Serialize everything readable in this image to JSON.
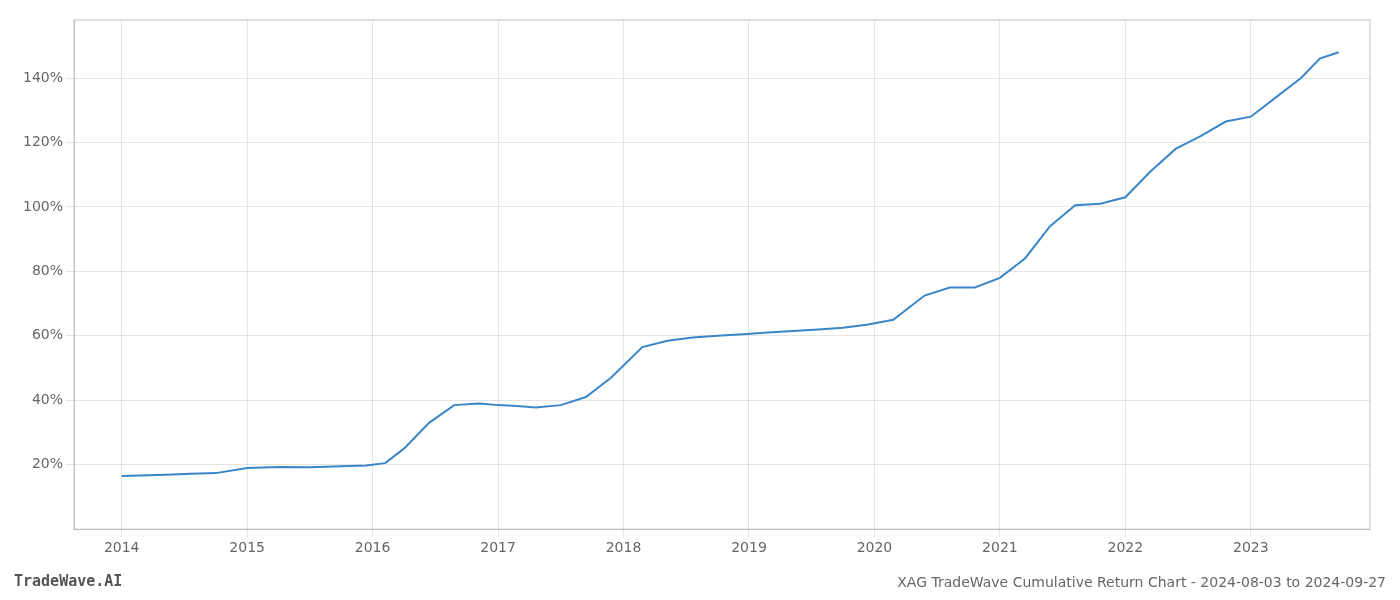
{
  "chart_data": {
    "type": "line",
    "title": "XAG TradeWave Cumulative Return Chart - 2024-08-03 to 2024-09-27",
    "annotations": [
      "TradeWave.AI"
    ],
    "x": [
      2014.0,
      2014.15,
      2014.35,
      2014.55,
      2014.75,
      2015.0,
      2015.25,
      2015.5,
      2015.75,
      2015.95,
      2016.1,
      2016.25,
      2016.45,
      2016.65,
      2016.85,
      2017.0,
      2017.15,
      2017.3,
      2017.5,
      2017.7,
      2017.9,
      2018.15,
      2018.35,
      2018.55,
      2018.75,
      2018.95,
      2019.15,
      2019.35,
      2019.55,
      2019.75,
      2019.95,
      2020.15,
      2020.4,
      2020.6,
      2020.8,
      2021.0,
      2021.2,
      2021.4,
      2021.6,
      2021.8,
      2022.0,
      2022.2,
      2022.4,
      2022.6,
      2022.8,
      2023.0,
      2023.2,
      2023.4,
      2023.55,
      2023.7
    ],
    "values": [
      16.5,
      16.7,
      16.9,
      17.2,
      17.4,
      19.0,
      19.3,
      19.2,
      19.5,
      19.8,
      20.5,
      25.0,
      33.0,
      38.5,
      39.0,
      38.5,
      38.2,
      37.8,
      38.5,
      41.0,
      47.0,
      56.5,
      58.5,
      59.5,
      60.0,
      60.5,
      61.0,
      61.5,
      62.0,
      62.5,
      63.5,
      65.0,
      72.5,
      75.0,
      75.0,
      78.0,
      84.0,
      94.0,
      100.5,
      101.0,
      103.0,
      111.0,
      118.0,
      122.0,
      126.5,
      128.0,
      134.0,
      140.0,
      146.0,
      148.0
    ],
    "color": "#3a86c8",
    "xlim": [
      2013.62,
      2023.95
    ],
    "xticks": [
      2014,
      2015,
      2016,
      2017,
      2018,
      2019,
      2020,
      2021,
      2022,
      2023
    ],
    "ylim": [
      0,
      158
    ],
    "yticks": [
      {
        "value": 20,
        "label": "20%"
      },
      {
        "value": 40,
        "label": "40%"
      },
      {
        "value": 60,
        "label": "60%"
      },
      {
        "value": 80,
        "label": "80%"
      },
      {
        "value": 100,
        "label": "100%"
      },
      {
        "value": 120,
        "label": "120%"
      },
      {
        "value": 140,
        "label": "140%"
      }
    ],
    "grid": true
  }
}
